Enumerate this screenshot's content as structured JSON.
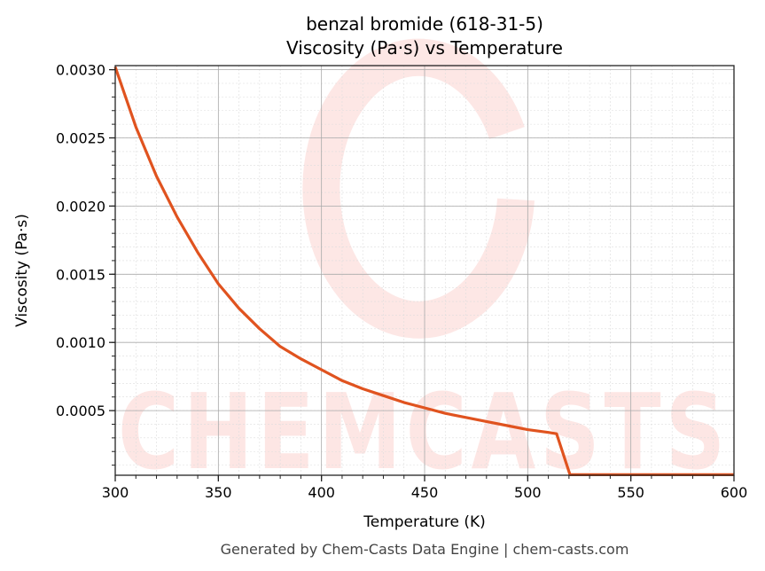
{
  "chart_data": {
    "type": "line",
    "title": "benzal bromide (618-31-5)",
    "subtitle": "Viscosity (Pa·s) vs Temperature",
    "xlabel": "Temperature (K)",
    "ylabel": "Viscosity (Pa·s)",
    "xlim": [
      300,
      600
    ],
    "ylim": [
      2.6e-05,
      0.00303
    ],
    "xticks": [
      300,
      350,
      400,
      450,
      500,
      550,
      600
    ],
    "xtick_labels": [
      "300",
      "350",
      "400",
      "450",
      "500",
      "550",
      "600"
    ],
    "yticks": [
      0.0005,
      0.001,
      0.0015,
      0.002,
      0.0025,
      0.003
    ],
    "ytick_labels": [
      "0.0005",
      "0.0010",
      "0.0015",
      "0.0020",
      "0.0025",
      "0.0030"
    ],
    "grid": true,
    "minor_grid": true,
    "series": [
      {
        "color": "#e0531f",
        "x": [
          300,
          310,
          320,
          330,
          340,
          350,
          360,
          370,
          380,
          390,
          400,
          410,
          420,
          430,
          440,
          450,
          460,
          470,
          480,
          490,
          500,
          510,
          514,
          520.5,
          530,
          540,
          550,
          560,
          570,
          580,
          590,
          600
        ],
        "y": [
          0.00302,
          0.00258,
          0.00222,
          0.00192,
          0.00166,
          0.00143,
          0.00125,
          0.0011,
          0.00097,
          0.00088,
          0.0008,
          0.00072,
          0.00066,
          0.00061,
          0.00056,
          0.00052,
          0.00048,
          0.00045,
          0.00042,
          0.00039,
          0.00036,
          0.00034,
          0.00033,
          3e-05,
          3e-05,
          3e-05,
          3e-05,
          3e-05,
          3e-05,
          3e-05,
          3e-05,
          3e-05
        ]
      }
    ]
  },
  "watermark": "CHEMCASTS",
  "footer": "Generated by Chem-Casts Data Engine | chem-casts.com"
}
